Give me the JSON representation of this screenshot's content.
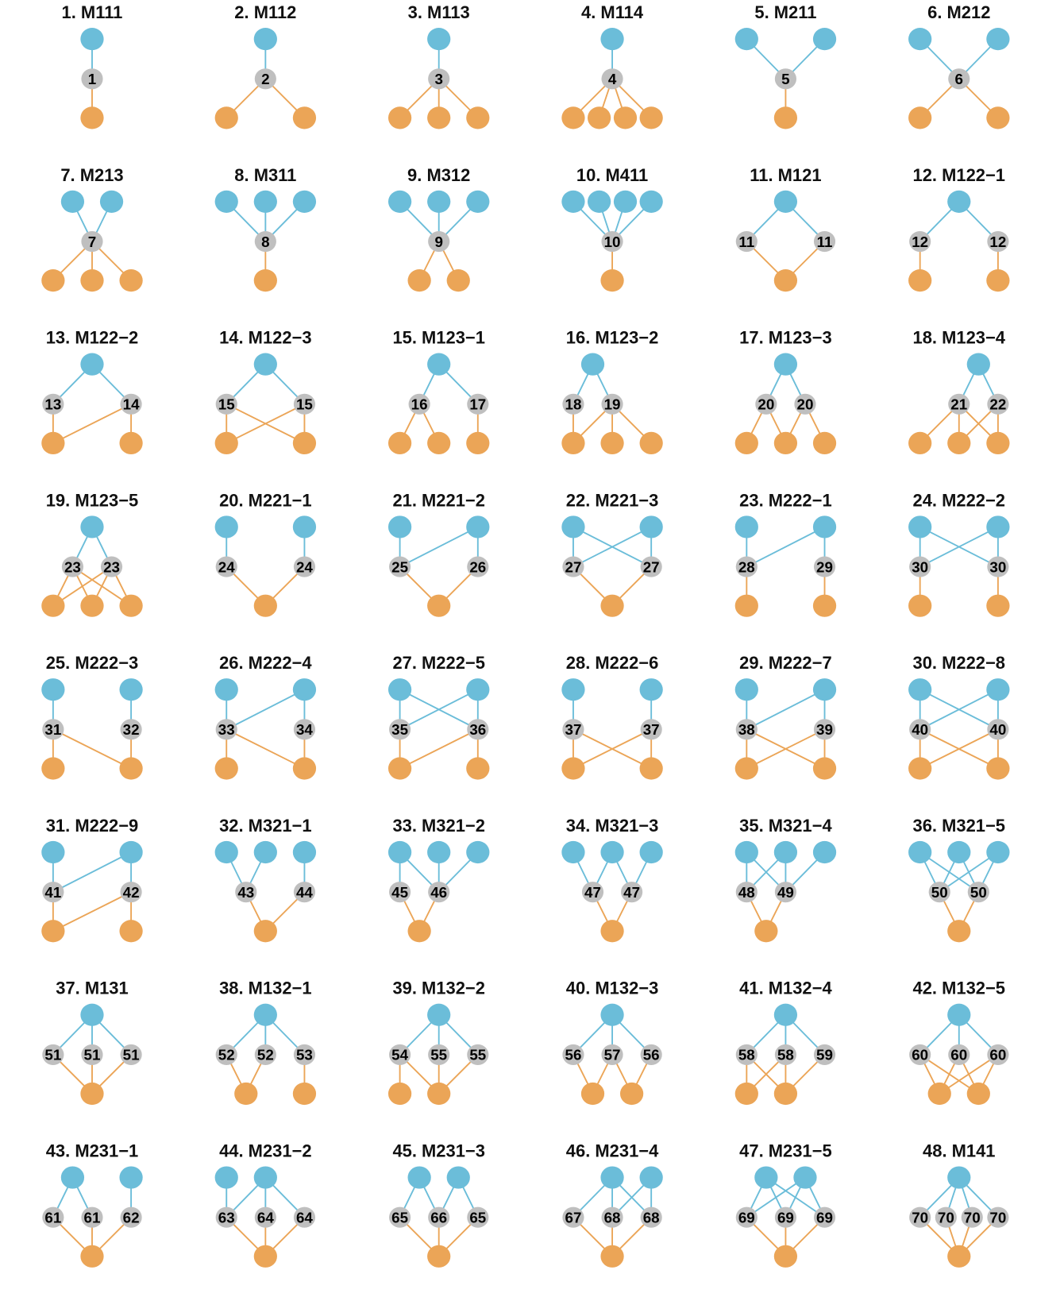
{
  "colors": {
    "top_node": "#6bbdd9",
    "mid_node": "#bfbfbf",
    "bottom_node": "#eba557",
    "top_edge": "#6bbdd9",
    "bottom_edge": "#eba557"
  },
  "motifs": [
    {
      "title": "1. M111",
      "top": 1,
      "mid": [
        "1"
      ],
      "bottom": 1,
      "edges": [
        "t0-m0",
        "m0-b0"
      ]
    },
    {
      "title": "2. M112",
      "top": 1,
      "mid": [
        "2"
      ],
      "bottom": 2,
      "edges": [
        "t0-m0",
        "m0-b0",
        "m0-b1"
      ]
    },
    {
      "title": "3. M113",
      "top": 1,
      "mid": [
        "3"
      ],
      "bottom": 3,
      "edges": [
        "t0-m0",
        "m0-b0",
        "m0-b1",
        "m0-b2"
      ]
    },
    {
      "title": "4. M114",
      "top": 1,
      "mid": [
        "4"
      ],
      "bottom": 4,
      "edges": [
        "t0-m0",
        "m0-b0",
        "m0-b1",
        "m0-b2",
        "m0-b3"
      ]
    },
    {
      "title": "5. M211",
      "top": 2,
      "mid": [
        "5"
      ],
      "bottom": 1,
      "edges": [
        "t0-m0",
        "t1-m0",
        "m0-b0"
      ]
    },
    {
      "title": "6. M212",
      "top": 2,
      "mid": [
        "6"
      ],
      "bottom": 2,
      "edges": [
        "t0-m0",
        "t1-m0",
        "m0-b0",
        "m0-b1"
      ]
    },
    {
      "title": "7. M213",
      "top": 2,
      "mid": [
        "7"
      ],
      "bottom": 3,
      "edges": [
        "t0-m0",
        "t1-m0",
        "m0-b0",
        "m0-b1",
        "m0-b2"
      ]
    },
    {
      "title": "8. M311",
      "top": 3,
      "mid": [
        "8"
      ],
      "bottom": 1,
      "edges": [
        "t0-m0",
        "t1-m0",
        "t2-m0",
        "m0-b0"
      ]
    },
    {
      "title": "9. M312",
      "top": 3,
      "mid": [
        "9"
      ],
      "bottom": 2,
      "edges": [
        "t0-m0",
        "t1-m0",
        "t2-m0",
        "m0-b0",
        "m0-b1"
      ]
    },
    {
      "title": "10. M411",
      "top": 4,
      "mid": [
        "10"
      ],
      "bottom": 1,
      "edges": [
        "t0-m0",
        "t1-m0",
        "t2-m0",
        "t3-m0",
        "m0-b0"
      ]
    },
    {
      "title": "11. M121",
      "top": 1,
      "mid": [
        "11",
        "11"
      ],
      "bottom": 1,
      "edges": [
        "t0-m0",
        "t0-m1",
        "m0-b0",
        "m1-b0"
      ]
    },
    {
      "title": "12. M122−1",
      "top": 1,
      "mid": [
        "12",
        "12"
      ],
      "bottom": 2,
      "edges": [
        "t0-m0",
        "t0-m1",
        "m0-b0",
        "m1-b1"
      ]
    },
    {
      "title": "13. M122−2",
      "top": 1,
      "mid": [
        "13",
        "14"
      ],
      "bottom": 2,
      "edges": [
        "t0-m0",
        "t0-m1",
        "m0-b0",
        "m1-b0",
        "m1-b1"
      ]
    },
    {
      "title": "14. M122−3",
      "top": 1,
      "mid": [
        "15",
        "15"
      ],
      "bottom": 2,
      "edges": [
        "t0-m0",
        "t0-m1",
        "m0-b0",
        "m0-b1",
        "m1-b0",
        "m1-b1"
      ]
    },
    {
      "title": "15. M123−1",
      "top": 1,
      "mid": [
        "16",
        "17"
      ],
      "bottom": 3,
      "edges": [
        "t0-m0",
        "t0-m1",
        "m0-b0",
        "m0-b1",
        "m1-b2"
      ]
    },
    {
      "title": "16. M123−2",
      "top": 1,
      "mid": [
        "18",
        "19"
      ],
      "bottom": 3,
      "edges": [
        "t0-m0",
        "t0-m1",
        "m0-b0",
        "m1-b0",
        "m1-b1",
        "m1-b2"
      ]
    },
    {
      "title": "17. M123−3",
      "top": 1,
      "mid": [
        "20",
        "20"
      ],
      "bottom": 3,
      "edges": [
        "t0-m0",
        "t0-m1",
        "m0-b0",
        "m0-b1",
        "m1-b1",
        "m1-b2"
      ]
    },
    {
      "title": "18. M123−4",
      "top": 1,
      "mid": [
        "21",
        "22"
      ],
      "bottom": 3,
      "edges": [
        "t0-m0",
        "t0-m1",
        "m0-b0",
        "m0-b1",
        "m0-b2",
        "m1-b1",
        "m1-b2"
      ]
    },
    {
      "title": "19. M123−5",
      "top": 1,
      "mid": [
        "23",
        "23"
      ],
      "bottom": 3,
      "edges": [
        "t0-m0",
        "t0-m1",
        "m0-b0",
        "m0-b1",
        "m0-b2",
        "m1-b0",
        "m1-b1",
        "m1-b2"
      ]
    },
    {
      "title": "20. M221−1",
      "top": 2,
      "mid": [
        "24",
        "24"
      ],
      "bottom": 1,
      "edges": [
        "t0-m0",
        "t1-m1",
        "m0-b0",
        "m1-b0"
      ]
    },
    {
      "title": "21. M221−2",
      "top": 2,
      "mid": [
        "25",
        "26"
      ],
      "bottom": 1,
      "edges": [
        "t0-m0",
        "t1-m0",
        "t1-m1",
        "m0-b0",
        "m1-b0"
      ]
    },
    {
      "title": "22. M221−3",
      "top": 2,
      "mid": [
        "27",
        "27"
      ],
      "bottom": 1,
      "edges": [
        "t0-m0",
        "t0-m1",
        "t1-m0",
        "t1-m1",
        "m0-b0",
        "m1-b0"
      ]
    },
    {
      "title": "23. M222−1",
      "top": 2,
      "mid": [
        "28",
        "29"
      ],
      "bottom": 2,
      "edges": [
        "t0-m0",
        "t1-m0",
        "t1-m1",
        "m0-b0",
        "m1-b1"
      ]
    },
    {
      "title": "24. M222−2",
      "top": 2,
      "mid": [
        "30",
        "30"
      ],
      "bottom": 2,
      "edges": [
        "t0-m0",
        "t0-m1",
        "t1-m0",
        "t1-m1",
        "m0-b0",
        "m1-b1"
      ]
    },
    {
      "title": "25. M222−3",
      "top": 2,
      "mid": [
        "31",
        "32"
      ],
      "bottom": 2,
      "edges": [
        "t0-m0",
        "t1-m1",
        "m0-b0",
        "m0-b1",
        "m1-b1"
      ]
    },
    {
      "title": "26. M222−4",
      "top": 2,
      "mid": [
        "33",
        "34"
      ],
      "bottom": 2,
      "edges": [
        "t0-m0",
        "t1-m0",
        "t1-m1",
        "m0-b0",
        "m0-b1",
        "m1-b1"
      ]
    },
    {
      "title": "27. M222−5",
      "top": 2,
      "mid": [
        "35",
        "36"
      ],
      "bottom": 2,
      "edges": [
        "t0-m0",
        "t0-m1",
        "t1-m0",
        "t1-m1",
        "m0-b0",
        "m1-b0",
        "m1-b1"
      ]
    },
    {
      "title": "28. M222−6",
      "top": 2,
      "mid": [
        "37",
        "37"
      ],
      "bottom": 2,
      "edges": [
        "t0-m0",
        "t1-m1",
        "m0-b0",
        "m0-b1",
        "m1-b0",
        "m1-b1"
      ]
    },
    {
      "title": "29. M222−7",
      "top": 2,
      "mid": [
        "38",
        "39"
      ],
      "bottom": 2,
      "edges": [
        "t0-m0",
        "t1-m0",
        "t1-m1",
        "m0-b0",
        "m0-b1",
        "m1-b0",
        "m1-b1"
      ]
    },
    {
      "title": "30. M222−8",
      "top": 2,
      "mid": [
        "40",
        "40"
      ],
      "bottom": 2,
      "edges": [
        "t0-m0",
        "t0-m1",
        "t1-m0",
        "t1-m1",
        "m0-b0",
        "m0-b1",
        "m1-b0",
        "m1-b1"
      ]
    },
    {
      "title": "31. M222−9",
      "top": 2,
      "mid": [
        "41",
        "42"
      ],
      "bottom": 2,
      "edges": [
        "t0-m0",
        "t1-m0",
        "t1-m1",
        "m0-b0",
        "m1-b0",
        "m1-b1"
      ]
    },
    {
      "title": "32. M321−1",
      "top": 3,
      "mid": [
        "43",
        "44"
      ],
      "bottom": 1,
      "edges": [
        "t0-m0",
        "t1-m0",
        "t2-m1",
        "m0-b0",
        "m1-b0"
      ]
    },
    {
      "title": "33. M321−2",
      "top": 3,
      "mid": [
        "45",
        "46"
      ],
      "bottom": 1,
      "edges": [
        "t0-m0",
        "t0-m1",
        "t1-m1",
        "t2-m1",
        "m0-b0",
        "m1-b0"
      ]
    },
    {
      "title": "34. M321−3",
      "top": 3,
      "mid": [
        "47",
        "47"
      ],
      "bottom": 1,
      "edges": [
        "t0-m0",
        "t1-m0",
        "t1-m1",
        "t2-m1",
        "m0-b0",
        "m1-b0"
      ]
    },
    {
      "title": "35. M321−4",
      "top": 3,
      "mid": [
        "48",
        "49"
      ],
      "bottom": 1,
      "edges": [
        "t0-m0",
        "t0-m1",
        "t1-m0",
        "t1-m1",
        "t2-m1",
        "m0-b0",
        "m1-b0"
      ]
    },
    {
      "title": "36. M321−5",
      "top": 3,
      "mid": [
        "50",
        "50"
      ],
      "bottom": 1,
      "edges": [
        "t0-m0",
        "t0-m1",
        "t1-m0",
        "t1-m1",
        "t2-m0",
        "t2-m1",
        "m0-b0",
        "m1-b0"
      ]
    },
    {
      "title": "37. M131",
      "top": 1,
      "mid": [
        "51",
        "51",
        "51"
      ],
      "bottom": 1,
      "edges": [
        "t0-m0",
        "t0-m1",
        "t0-m2",
        "m0-b0",
        "m1-b0",
        "m2-b0"
      ]
    },
    {
      "title": "38. M132−1",
      "top": 1,
      "mid": [
        "52",
        "52",
        "53"
      ],
      "bottom": 2,
      "edges": [
        "t0-m0",
        "t0-m1",
        "t0-m2",
        "m0-b0",
        "m1-b0",
        "m2-b1"
      ]
    },
    {
      "title": "39. M132−2",
      "top": 1,
      "mid": [
        "54",
        "55",
        "55"
      ],
      "bottom": 2,
      "edges": [
        "t0-m0",
        "t0-m1",
        "t0-m2",
        "m0-b0",
        "m0-b1",
        "m1-b1",
        "m2-b1"
      ]
    },
    {
      "title": "40. M132−3",
      "top": 1,
      "mid": [
        "56",
        "57",
        "56"
      ],
      "bottom": 2,
      "edges": [
        "t0-m0",
        "t0-m1",
        "t0-m2",
        "m0-b0",
        "m1-b0",
        "m1-b1",
        "m2-b1"
      ]
    },
    {
      "title": "41. M132−4",
      "top": 1,
      "mid": [
        "58",
        "58",
        "59"
      ],
      "bottom": 2,
      "edges": [
        "t0-m0",
        "t0-m1",
        "t0-m2",
        "m0-b0",
        "m0-b1",
        "m1-b0",
        "m1-b1",
        "m2-b1"
      ]
    },
    {
      "title": "42. M132−5",
      "top": 1,
      "mid": [
        "60",
        "60",
        "60"
      ],
      "bottom": 2,
      "edges": [
        "t0-m0",
        "t0-m1",
        "t0-m2",
        "m0-b0",
        "m0-b1",
        "m1-b0",
        "m1-b1",
        "m2-b0",
        "m2-b1"
      ]
    },
    {
      "title": "43. M231−1",
      "top": 2,
      "mid": [
        "61",
        "61",
        "62"
      ],
      "bottom": 1,
      "edges": [
        "t0-m0",
        "t0-m1",
        "t1-m2",
        "m0-b0",
        "m1-b0",
        "m2-b0"
      ]
    },
    {
      "title": "44. M231−2",
      "top": 2,
      "mid": [
        "63",
        "64",
        "64"
      ],
      "bottom": 1,
      "edges": [
        "t0-m0",
        "t1-m0",
        "t1-m1",
        "t1-m2",
        "m0-b0",
        "m1-b0",
        "m2-b0"
      ]
    },
    {
      "title": "45. M231−3",
      "top": 2,
      "mid": [
        "65",
        "66",
        "65"
      ],
      "bottom": 1,
      "edges": [
        "t0-m0",
        "t0-m1",
        "t1-m1",
        "t1-m2",
        "m0-b0",
        "m1-b0",
        "m2-b0"
      ]
    },
    {
      "title": "46. M231−4",
      "top": 2,
      "mid": [
        "67",
        "68",
        "68"
      ],
      "bottom": 1,
      "edges": [
        "t0-m0",
        "t0-m1",
        "t0-m2",
        "t1-m1",
        "t1-m2",
        "m0-b0",
        "m1-b0",
        "m2-b0"
      ]
    },
    {
      "title": "47. M231−5",
      "top": 2,
      "mid": [
        "69",
        "69",
        "69"
      ],
      "bottom": 1,
      "edges": [
        "t0-m0",
        "t0-m1",
        "t0-m2",
        "t1-m0",
        "t1-m1",
        "t1-m2",
        "m0-b0",
        "m1-b0",
        "m2-b0"
      ]
    },
    {
      "title": "48. M141",
      "top": 1,
      "mid": [
        "70",
        "70",
        "70",
        "70"
      ],
      "bottom": 1,
      "edges": [
        "t0-m0",
        "t0-m1",
        "t0-m2",
        "t0-m3",
        "m0-b0",
        "m1-b0",
        "m2-b0",
        "m3-b0"
      ]
    }
  ]
}
